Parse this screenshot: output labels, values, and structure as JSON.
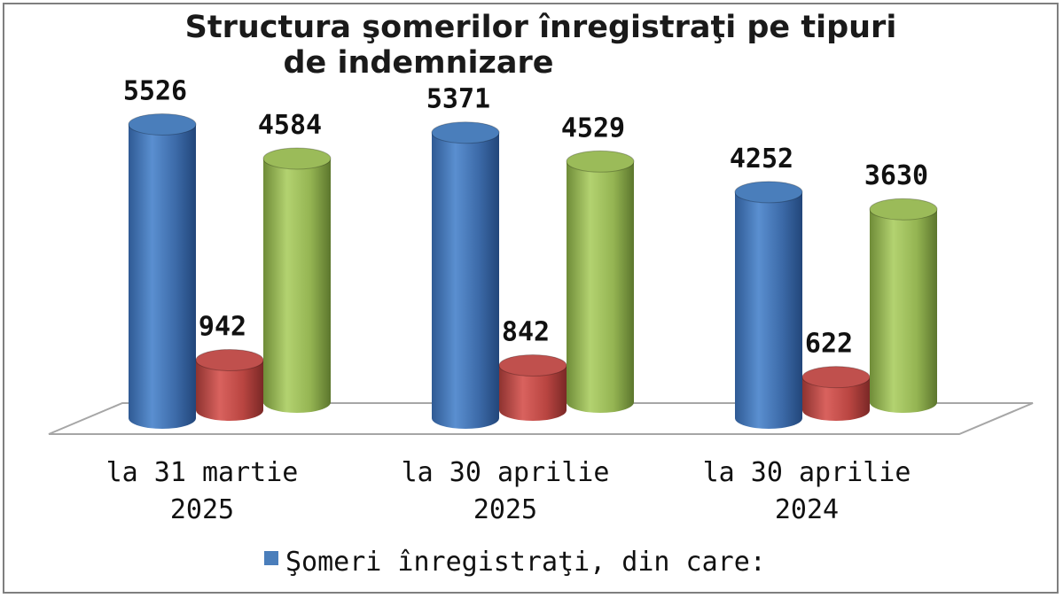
{
  "chart_data": {
    "type": "bar",
    "title_lines": [
      "Structura şomerilor înregistraţi pe tipuri",
      "de indemnizare"
    ],
    "categories": [
      [
        "la 31 martie",
        "2025"
      ],
      [
        "la 30 aprilie",
        "2025"
      ],
      [
        "la 30 aprilie",
        "2024"
      ]
    ],
    "series": [
      {
        "name": "Şomeri înregistraţi, din care:",
        "color": "#4a7ebb",
        "values": [
          5526,
          5371,
          4252
        ]
      },
      {
        "color": "#c0504d",
        "values": [
          942,
          842,
          622
        ]
      },
      {
        "color": "#9bbb59",
        "values": [
          4584,
          4529,
          3630
        ]
      }
    ],
    "ylim": [
      0,
      6000
    ],
    "grid": false,
    "legend_position": "bottom",
    "style": "3d-cylinder"
  }
}
